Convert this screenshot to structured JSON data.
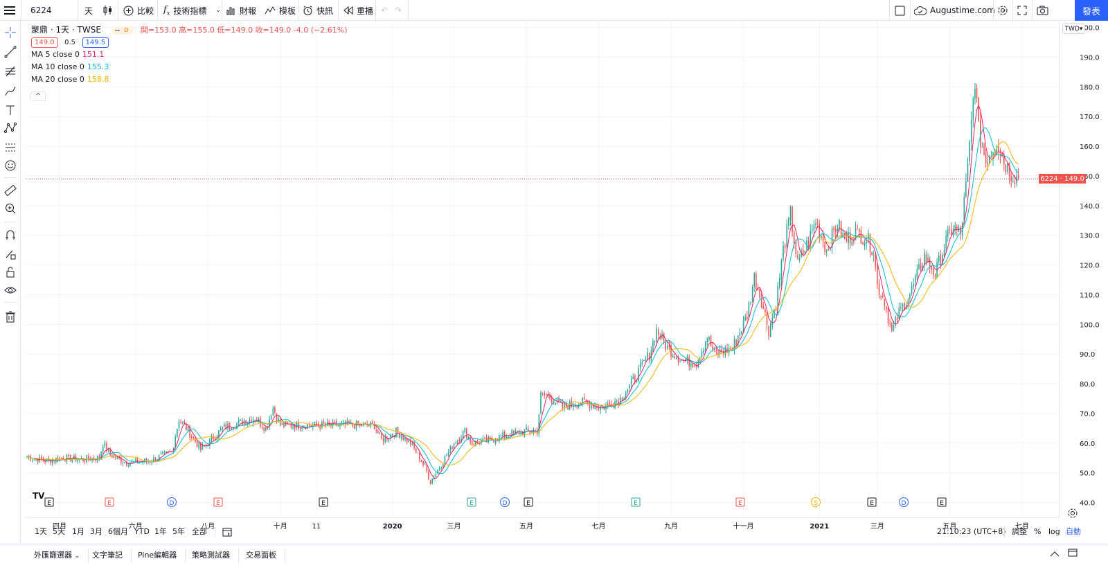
{
  "toolbar": {
    "symbol": "6224",
    "interval": "天",
    "compare": "比較",
    "indicators": "技術指標",
    "financials": "財報",
    "templates": "模板",
    "alert": "快訊",
    "replay": "重播",
    "account": "Augustime.com",
    "publish": "發表"
  },
  "legend": {
    "title": "聚鼎 · 1天 · TWSE",
    "badge": "D",
    "ohlc": {
      "open": "開=153.0",
      "high": "高=155.0",
      "low": "低=149.0",
      "close": "收=149.0",
      "change": "-4.0 (−2.61%)"
    },
    "bid": "149.0",
    "spread": "0.5",
    "ask": "149.5",
    "ma": [
      {
        "label": "MA 5 close 0",
        "value": "151.1",
        "color": "#e91e63"
      },
      {
        "label": "MA 10 close 0",
        "value": "155.3",
        "color": "#00bcd4"
      },
      {
        "label": "MA 20 close 0",
        "value": "158.8",
        "color": "#f5b400"
      }
    ],
    "collapse": "^"
  },
  "price_axis": {
    "currency": "TWD",
    "last_label": "6224 · 149.0"
  },
  "range_buttons": [
    "1天",
    "5天",
    "1月",
    "3月",
    "6個月",
    "YTD",
    "1年",
    "5年",
    "全部"
  ],
  "footer": {
    "time": "21:10:23 (UTC+8)",
    "adjust": "調整",
    "percent": "%",
    "log": "log",
    "auto": "自動"
  },
  "bottom_tabs": [
    "外匯篩選器",
    "文字筆記",
    "Pine編輯器",
    "策略測試器",
    "交易面板"
  ],
  "colors": {
    "up": "#26a69a",
    "down": "#ef5350",
    "accent": "#2962ff"
  },
  "events": [
    {
      "letter": "E",
      "color": "#131722"
    },
    {
      "letter": "E",
      "color": "#ef5350"
    },
    {
      "letter": "D",
      "color": "#2962ff"
    },
    {
      "letter": "E",
      "color": "#ef5350"
    },
    {
      "letter": "E",
      "color": "#131722"
    },
    {
      "letter": "E",
      "color": "#26a69a"
    },
    {
      "letter": "D",
      "color": "#2962ff"
    },
    {
      "letter": "E",
      "color": "#131722"
    },
    {
      "letter": "E",
      "color": "#26a69a"
    },
    {
      "letter": "E",
      "color": "#ef5350"
    },
    {
      "letter": "S",
      "color": "#f5b400"
    },
    {
      "letter": "E",
      "color": "#131722"
    },
    {
      "letter": "D",
      "color": "#2962ff"
    },
    {
      "letter": "E",
      "color": "#131722"
    }
  ],
  "chart_data": {
    "type": "candlestick",
    "symbol": "聚鼎",
    "exchange": "TWSE",
    "interval": "1天",
    "ylim": [
      35,
      202
    ],
    "y_ticks": [
      40,
      50,
      60,
      70,
      80,
      90,
      100,
      110,
      120,
      130,
      140,
      150,
      160,
      170,
      180,
      190,
      200
    ],
    "x_ticks": [
      "四月",
      "六月",
      "八月",
      "十月",
      "11",
      "2020",
      "三月",
      "五月",
      "七月",
      "九月",
      "十一月",
      "2021",
      "三月",
      "五月",
      "七月"
    ],
    "last_price": 149.0,
    "price_path": [
      [
        0,
        55.5
      ],
      [
        10,
        54
      ],
      [
        20,
        55
      ],
      [
        30,
        54.5
      ],
      [
        40,
        55
      ],
      [
        42,
        60
      ],
      [
        46,
        56
      ],
      [
        55,
        53.5
      ],
      [
        68,
        54
      ],
      [
        80,
        57
      ],
      [
        84,
        68
      ],
      [
        88,
        65
      ],
      [
        96,
        58
      ],
      [
        100,
        60
      ],
      [
        108,
        65
      ],
      [
        118,
        67
      ],
      [
        126,
        68.5
      ],
      [
        132,
        65
      ],
      [
        136,
        72
      ],
      [
        140,
        66
      ],
      [
        160,
        66
      ],
      [
        178,
        66
      ],
      [
        192,
        66
      ],
      [
        196,
        61
      ],
      [
        204,
        64
      ],
      [
        212,
        60
      ],
      [
        220,
        52
      ],
      [
        223,
        47
      ],
      [
        228,
        52
      ],
      [
        236,
        60
      ],
      [
        242,
        64
      ],
      [
        246,
        60
      ],
      [
        256,
        61
      ],
      [
        266,
        63
      ],
      [
        276,
        64
      ],
      [
        282,
        64
      ],
      [
        284,
        76
      ],
      [
        288,
        76
      ],
      [
        296,
        72
      ],
      [
        306,
        74
      ],
      [
        312,
        73
      ],
      [
        318,
        72
      ],
      [
        328,
        75
      ],
      [
        334,
        80
      ],
      [
        344,
        90
      ],
      [
        348,
        98
      ],
      [
        354,
        92
      ],
      [
        362,
        88
      ],
      [
        370,
        87
      ],
      [
        376,
        96
      ],
      [
        380,
        90
      ],
      [
        390,
        92
      ],
      [
        398,
        103
      ],
      [
        402,
        116
      ],
      [
        406,
        108
      ],
      [
        410,
        98
      ],
      [
        414,
        107
      ],
      [
        418,
        125
      ],
      [
        422,
        137
      ],
      [
        426,
        120
      ],
      [
        432,
        128
      ],
      [
        436,
        135
      ],
      [
        442,
        125
      ],
      [
        448,
        134
      ],
      [
        452,
        128
      ],
      [
        458,
        131
      ],
      [
        464,
        129
      ],
      [
        468,
        125
      ],
      [
        470,
        113
      ],
      [
        474,
        108
      ],
      [
        478,
        97
      ],
      [
        482,
        104
      ],
      [
        488,
        110
      ],
      [
        496,
        123
      ],
      [
        502,
        117
      ],
      [
        508,
        128
      ],
      [
        512,
        133
      ],
      [
        516,
        130
      ],
      [
        520,
        152
      ],
      [
        524,
        183
      ],
      [
        526,
        165
      ],
      [
        530,
        155
      ],
      [
        536,
        162
      ],
      [
        540,
        155
      ],
      [
        544,
        151
      ],
      [
        548,
        149
      ]
    ]
  }
}
